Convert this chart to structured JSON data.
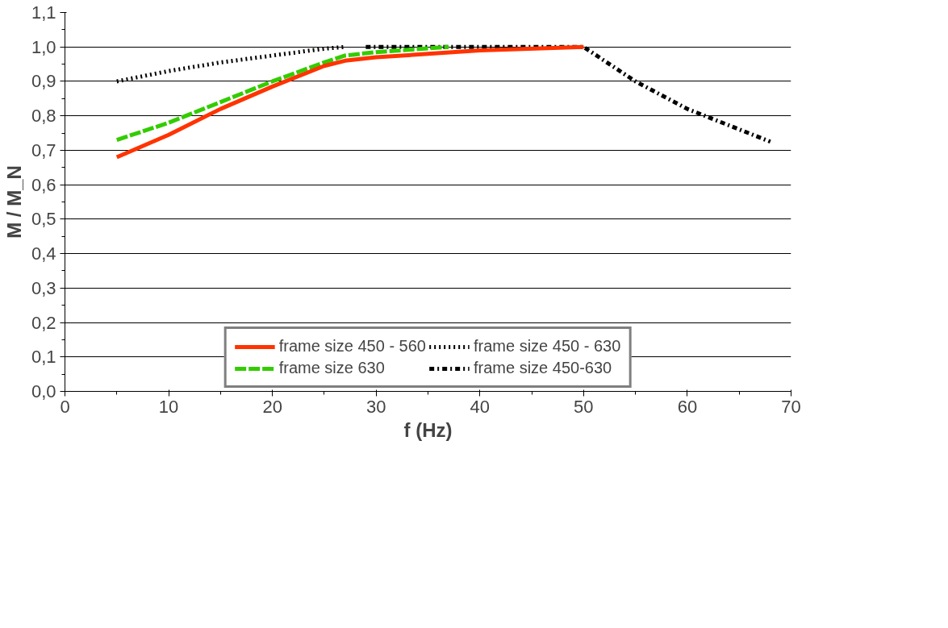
{
  "chart_data": {
    "type": "line",
    "xlabel": "f (Hz)",
    "ylabel": "M / M_N",
    "xlim": [
      0,
      70
    ],
    "xticks": [
      0,
      10,
      20,
      30,
      40,
      50,
      60,
      70
    ],
    "ylim": [
      0,
      1.1
    ],
    "yticks": [
      {
        "value": 0,
        "label": "0,0"
      },
      {
        "value": 0.1,
        "label": "0,1"
      },
      {
        "value": 0.2,
        "label": "0,2"
      },
      {
        "value": 0.3,
        "label": "0,3"
      },
      {
        "value": 0.4,
        "label": "0,4"
      },
      {
        "value": 0.5,
        "label": "0,5"
      },
      {
        "value": 0.6,
        "label": "0,6"
      },
      {
        "value": 0.7,
        "label": "0,7"
      },
      {
        "value": 0.8,
        "label": "0,8"
      },
      {
        "value": 0.9,
        "label": "0,9"
      },
      {
        "value": 1.0,
        "label": "1,0"
      },
      {
        "value": 1.1,
        "label": "1,1"
      }
    ],
    "grid": "y",
    "legend": "bottom",
    "marker": "none",
    "series": [
      {
        "name": "frame size 450 - 560",
        "color": "#ff3300",
        "line_style": "solid",
        "x": [
          5,
          10,
          15,
          20,
          25,
          27,
          30,
          35,
          40,
          50
        ],
        "values": [
          0.68,
          0.745,
          0.82,
          0.885,
          0.945,
          0.96,
          0.97,
          0.98,
          0.99,
          1.0
        ]
      },
      {
        "name": "frame size 630",
        "color": "#33cc00",
        "line_style": "dashed",
        "x": [
          5,
          10,
          15,
          20,
          25,
          27,
          30,
          37
        ],
        "values": [
          0.73,
          0.78,
          0.84,
          0.9,
          0.955,
          0.975,
          0.985,
          1.0
        ]
      },
      {
        "name": "frame size 450 - 630",
        "color": "#000000",
        "line_style": "dotted",
        "x": [
          5,
          10,
          15,
          20,
          25,
          27
        ],
        "values": [
          0.9,
          0.93,
          0.955,
          0.975,
          0.995,
          1.0
        ]
      },
      {
        "name": "frame size 450-630",
        "color": "#000000",
        "line_style": "dashdot",
        "x": [
          29,
          40,
          50,
          55,
          60,
          68
        ],
        "values": [
          1.0,
          1.0,
          1.0,
          0.9,
          0.82,
          0.725
        ]
      }
    ]
  }
}
